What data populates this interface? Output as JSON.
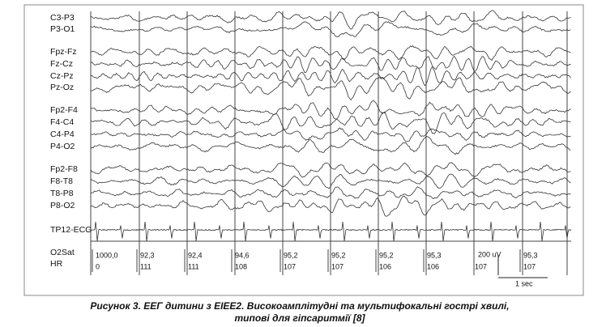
{
  "figure": {
    "channels": [
      "C3-P3",
      "P3-O1",
      "Fpz-Fz",
      "Fz-Cz",
      "Cz-Pz",
      "Pz-Oz",
      "Fp2-F4",
      "F4-C4",
      "C4-P4",
      "P4-O2",
      "Fp2-F8",
      "F8-T8",
      "T8-P8",
      "P8-O2"
    ],
    "ecg_label": "TP12-ECG",
    "o2sat_label": "O2Sat",
    "hr_label": "HR",
    "o2sat_values": [
      "1000,0",
      "92,3",
      "92,4",
      "94,6",
      "95,2",
      "95,2",
      "95,2",
      "95,3",
      "95,3"
    ],
    "hr_values": [
      "0",
      "111",
      "111",
      "108",
      "107",
      "107",
      "106",
      "106",
      "107",
      "107"
    ],
    "amplitude_scale": "200 uV",
    "time_scale": "1 sec"
  },
  "caption": {
    "line1": "Рисунок 3. ЕЕГ дитини з EIEE2. Високоамплітудні та мультифокальні гострі хвилі,",
    "line2": "типові для гіпсаритмії [8]"
  }
}
